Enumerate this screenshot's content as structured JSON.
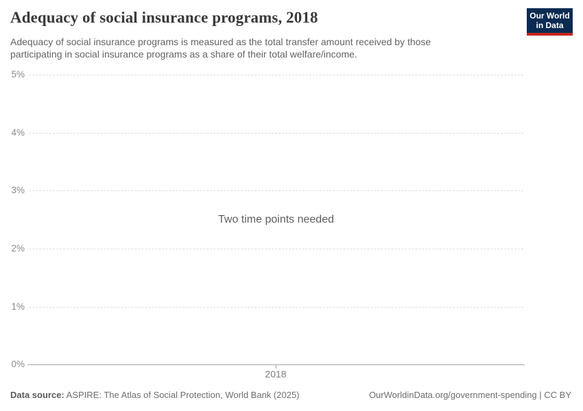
{
  "header": {
    "title": "Adequacy of social insurance programs, 2018",
    "subtitle": "Adequacy of social insurance programs is measured as the total transfer amount received by those participating in social insurance programs as a share of their total welfare/income.",
    "logo": {
      "line1": "Our World",
      "line2": "in Data",
      "bg_color": "#0a2b52",
      "stripe_color": "#c5281c"
    }
  },
  "chart_data": {
    "type": "line",
    "title": "Adequacy of social insurance programs, 2018",
    "series": [],
    "empty_state_message": "Two time points needed",
    "ylabel": "",
    "xlabel": "",
    "ylim": [
      0,
      5
    ],
    "y_tick_unit": "%",
    "y_ticks": [
      "5%",
      "4%",
      "3%",
      "2%",
      "1%",
      "0%"
    ],
    "x_ticks": [
      "2018"
    ],
    "grid": "horizontal-dashed",
    "legend_position": "none",
    "gridline_color": "#dcdcdc",
    "axis_color": "#a5a5a5"
  },
  "footer": {
    "data_source_label": "Data source:",
    "data_source_value": " ASPIRE: The Atlas of Social Protection, World Bank (2025)",
    "attribution": "OurWorldinData.org/government-spending | CC BY"
  }
}
